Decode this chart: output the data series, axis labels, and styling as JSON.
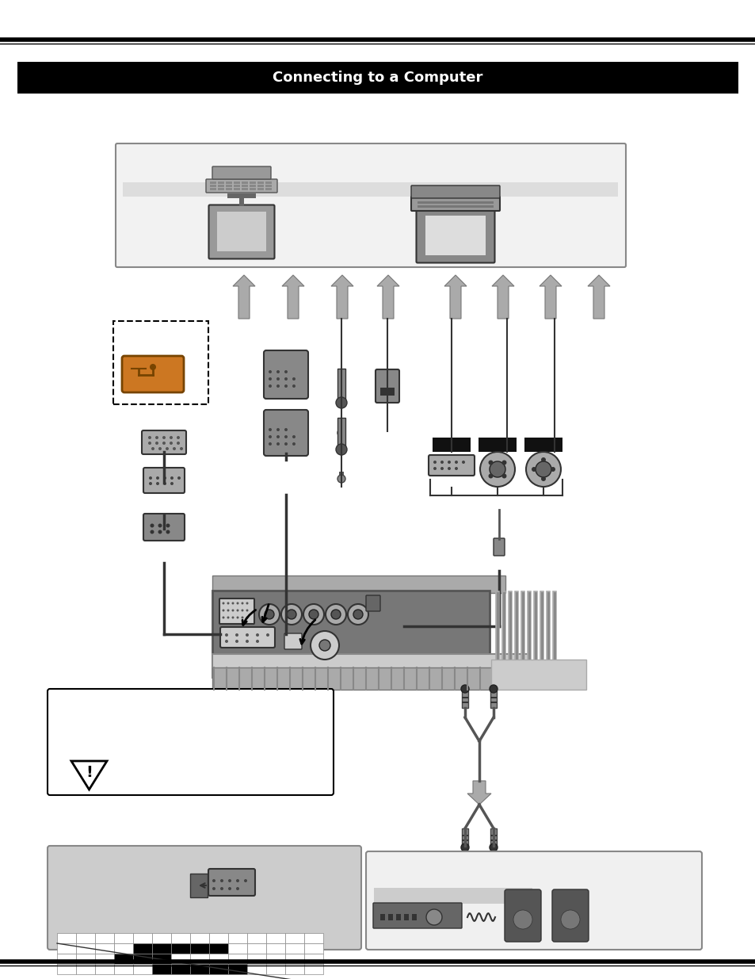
{
  "page_bg": "#ffffff",
  "header_bar_color": "#000000",
  "header_text_color": "#ffffff",
  "border_color": "#000000",
  "comp_box_bg": "#f2f2f2",
  "comp_box_border": "#888888",
  "comp_bar_bg": "#dddddd",
  "arrow_fill": "#aaaaaa",
  "arrow_edge": "#666666",
  "dashed_box_color": "#000000",
  "proj_panel_bg": "#888888",
  "proj_body_bg": "#bbbbbb",
  "proj_vent_color": "#777777",
  "cable_color": "#333333",
  "label_bar_color": "#222222",
  "warning_bg": "#ffffff",
  "warning_border": "#000000",
  "pin_box_bg": "#cccccc",
  "ext_audio_bg": "#f0f0f0",
  "ext_audio_border": "#888888",
  "rca_red": "#cc2222",
  "rca_white": "#eeeeee",
  "rca_dark": "#444444"
}
